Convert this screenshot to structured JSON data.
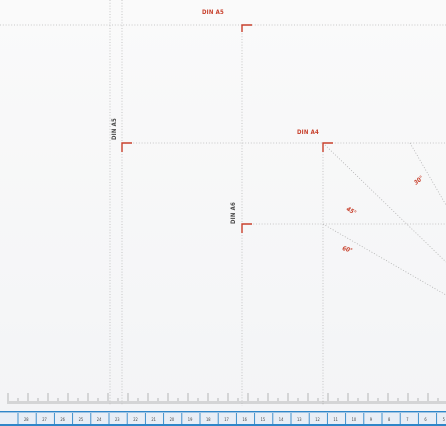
{
  "labels": {
    "din_a5_top": "DIN A5",
    "din_a5_left": "DIN A5",
    "din_a4": "DIN A4",
    "din_a6": "DIN A6"
  },
  "angles": {
    "a30": "30°",
    "a45": "45°",
    "a60": "60°"
  },
  "ruler": {
    "numbers": [
      "28",
      "27",
      "26",
      "25",
      "24",
      "23",
      "22",
      "21",
      "20",
      "19",
      "18",
      "17",
      "16",
      "15",
      "14",
      "13",
      "12",
      "11",
      "10",
      "9",
      "8",
      "7",
      "6",
      "5"
    ]
  },
  "colors": {
    "accent": "#c8402c",
    "ruler_band": "#2f86c8",
    "line": "#b8b8b8"
  }
}
